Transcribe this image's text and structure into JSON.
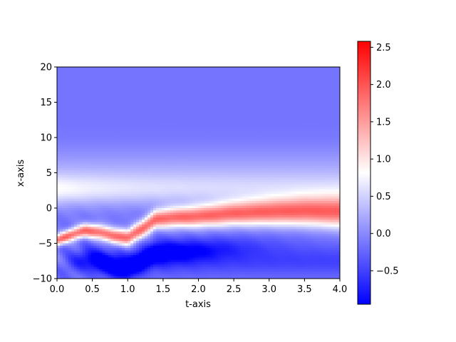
{
  "chart_data": {
    "type": "heatmap",
    "title": "",
    "xlabel": "t-axis",
    "ylabel": "x-axis",
    "xlim": [
      0.0,
      4.0
    ],
    "ylim": [
      -10,
      20
    ],
    "x_ticks": [
      "0.0",
      "0.5",
      "1.0",
      "1.5",
      "2.0",
      "2.5",
      "3.0",
      "3.5",
      "4.0"
    ],
    "y_ticks": [
      "−10",
      "−5",
      "0",
      "5",
      "10",
      "15",
      "20"
    ],
    "colorbar": {
      "colormap": "bwr",
      "range": [
        -0.95,
        2.58
      ],
      "ticks": [
        "−0.5",
        "0.0",
        "0.5",
        "1.0",
        "1.5",
        "2.0",
        "2.5"
      ],
      "colors": {
        "low": "#0000ff",
        "mid": "#ffffff",
        "high": "#ff0000"
      }
    },
    "field": {
      "background_value": -0.15,
      "ridge_peak_value": 2.4,
      "ridge_center_x": [
        {
          "t": 0.0,
          "x": -4.6
        },
        {
          "t": 0.2,
          "x": -3.8
        },
        {
          "t": 0.4,
          "x": -3.2
        },
        {
          "t": 0.6,
          "x": -3.4
        },
        {
          "t": 0.8,
          "x": -4.0
        },
        {
          "t": 1.0,
          "x": -4.2
        },
        {
          "t": 1.1,
          "x": -3.6
        },
        {
          "t": 1.2,
          "x": -3.0
        },
        {
          "t": 1.4,
          "x": -1.6
        },
        {
          "t": 1.6,
          "x": -1.4
        },
        {
          "t": 2.0,
          "x": -1.2
        },
        {
          "t": 2.5,
          "x": -0.8
        },
        {
          "t": 3.0,
          "x": -0.6
        },
        {
          "t": 3.5,
          "x": -0.5
        },
        {
          "t": 4.0,
          "x": -0.6
        }
      ],
      "trough_min_value": -0.9,
      "upper_white_band_x": 2.5
    }
  }
}
